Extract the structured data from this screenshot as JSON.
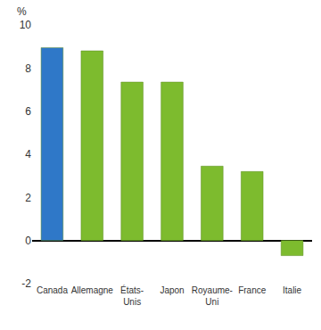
{
  "chart_data": {
    "type": "bar",
    "ylabel": "%",
    "categories": [
      "Canada",
      "Allemagne",
      "États-Unis",
      "Japon",
      "Royaume-Uni",
      "France",
      "Italie"
    ],
    "values": [
      8.95,
      8.8,
      7.35,
      7.35,
      3.45,
      3.2,
      -0.7
    ],
    "colors": [
      "#2f78c8",
      "#7dbb2e",
      "#7dbb2e",
      "#7dbb2e",
      "#7dbb2e",
      "#7dbb2e",
      "#7dbb2e"
    ],
    "ylim": [
      -2,
      10
    ],
    "yticks": [
      -2,
      0,
      2,
      4,
      6,
      8,
      10
    ],
    "grid": false
  }
}
